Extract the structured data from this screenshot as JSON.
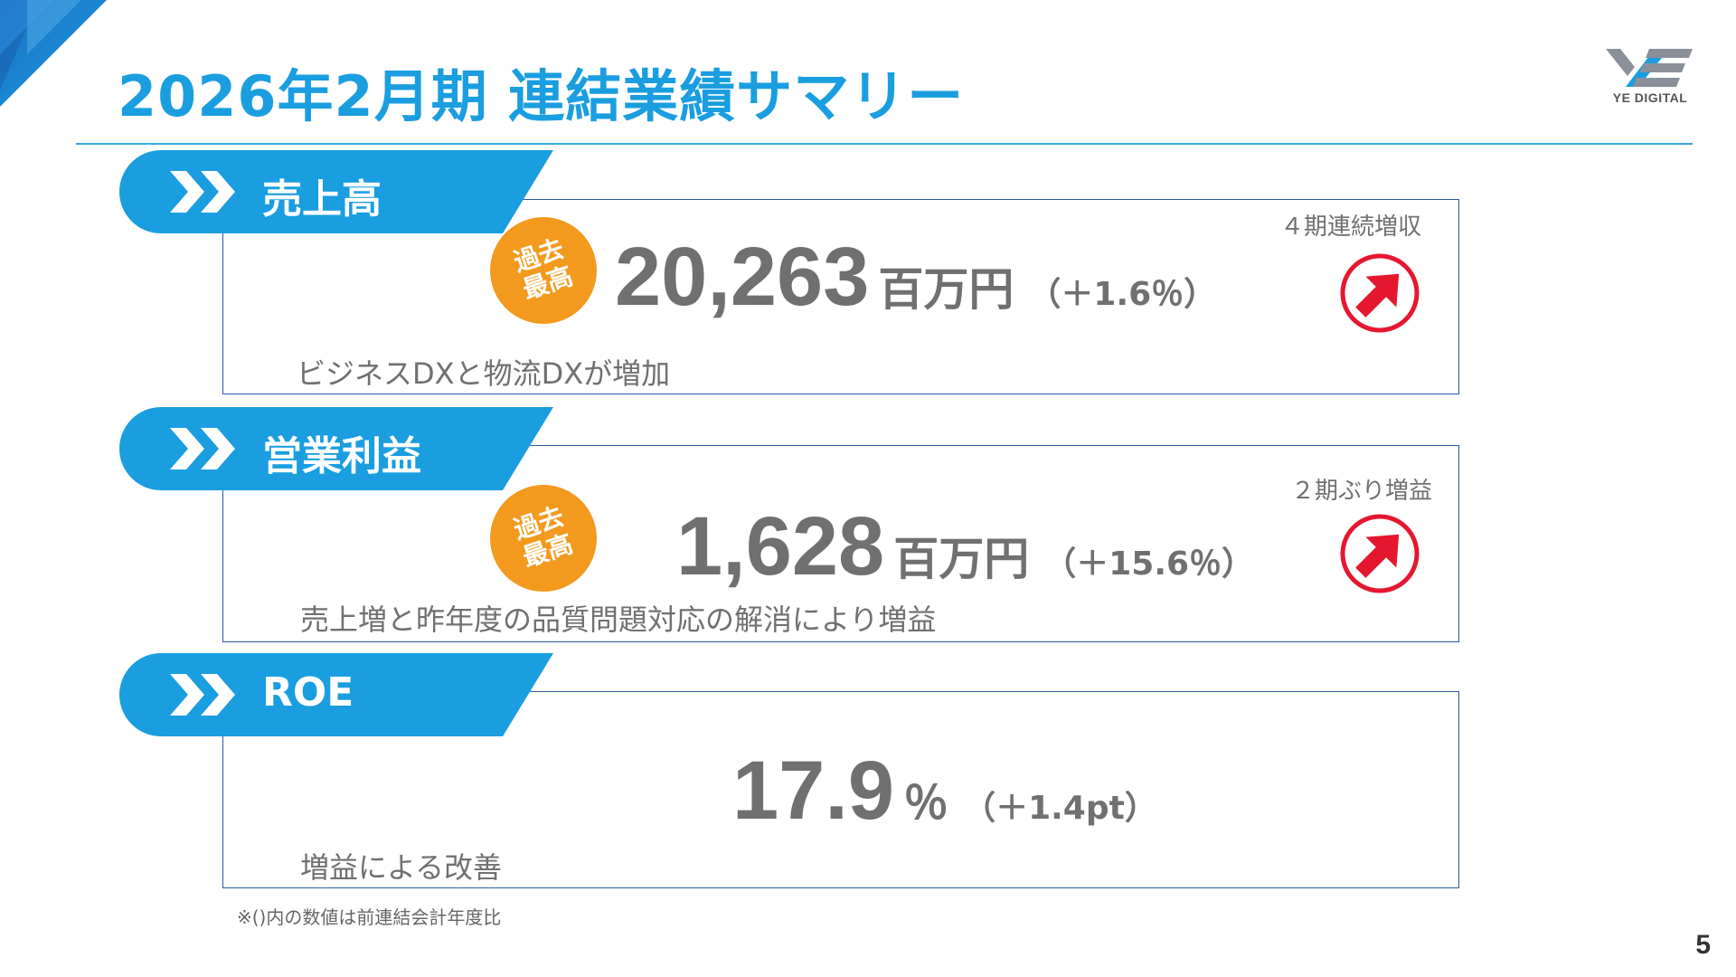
{
  "header": {
    "title": "2026年2月期 連結業績サマリー",
    "logo_text": "YE DIGITAL"
  },
  "sections": [
    {
      "label": "売上高",
      "badge": [
        "過去",
        "最高"
      ],
      "value": "20,263",
      "unit": "百万円",
      "change": "（＋1.6％）",
      "trend_note": "４期連続増収",
      "description": "ビジネスDXと物流DXが増加"
    },
    {
      "label": "営業利益",
      "badge": [
        "過去",
        "最高"
      ],
      "value": "1,628",
      "unit": "百万円",
      "change": "（＋15.6％）",
      "trend_note": "２期ぶり増益",
      "description": "売上増と昨年度の品質問題対応の解消により増益"
    },
    {
      "label": "ROE",
      "value": "17.9",
      "unit": "％",
      "change": "（＋1.4pt）",
      "description": "増益による改善"
    }
  ],
  "footnote": "※()内の数値は前連結会計年度比",
  "page_number": "5",
  "colors": {
    "accent": "#1a9ee0",
    "badge": "#f39a1e",
    "arrow": "#e5172f",
    "border": "#2c5aa0"
  },
  "icons": [
    "chevrons-right-icon",
    "up-right-arrow-icon"
  ]
}
